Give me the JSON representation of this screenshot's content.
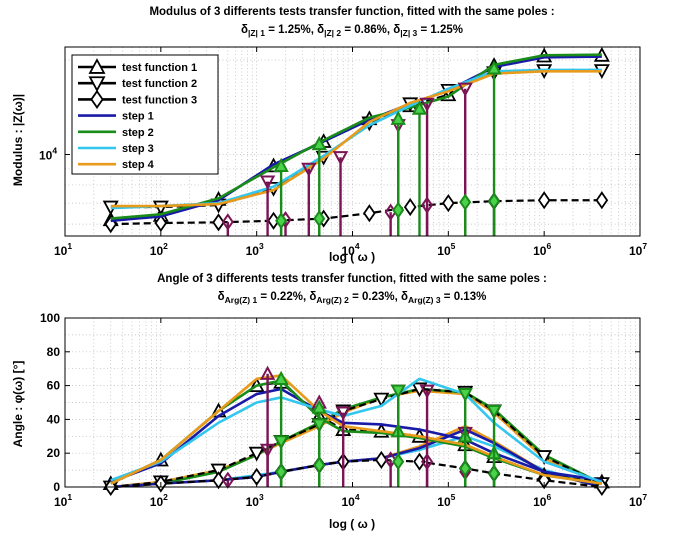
{
  "colors": {
    "test_function_1": "#000000",
    "test_function_2": "#000000",
    "test_function_3": "#000000",
    "step_1": "#1a1aa8",
    "step_2": "#1a8c1a",
    "step_3": "#33c6ee",
    "step_4": "#e89a1a",
    "stems_test_1": "#7a1455",
    "stems_test_2": "#1a8c1a",
    "grid": "#b8b8b8"
  },
  "chart_data": [
    {
      "type": "line",
      "title": "Modulus of 3 differents tests transfer function, fitted with the same poles :",
      "subtitle_parts": [
        "δ",
        "|Z| 1",
        " = 1.25%, ",
        "δ",
        "|Z| 2",
        " = 0.86%, ",
        "δ",
        "|Z| 3",
        " = 1.25%"
      ],
      "xlabel": "log ( ω )",
      "ylabel": "Modulus : |Z(ω)|",
      "x_scale": "log",
      "y_scale": "log",
      "xlim": [
        10,
        10000000
      ],
      "ylim": [
        5500,
        22000
      ],
      "x_ticks": [
        {
          "v": 10,
          "b": "10",
          "e": "1"
        },
        {
          "v": 100,
          "b": "10",
          "e": "2"
        },
        {
          "v": 1000,
          "b": "10",
          "e": "3"
        },
        {
          "v": 10000,
          "b": "10",
          "e": "4"
        },
        {
          "v": 100000,
          "b": "10",
          "e": "5"
        },
        {
          "v": 1000000,
          "b": "10",
          "e": "6"
        },
        {
          "v": 10000000,
          "b": "10",
          "e": "7"
        }
      ],
      "y_ticks": [
        {
          "v": 10000,
          "b": "10",
          "e": "4"
        }
      ],
      "grid": true,
      "legend": "top-left",
      "legend_entries": [
        {
          "label": "test function 1",
          "marker": "triangle-up",
          "color": "#000000"
        },
        {
          "label": "test function 2",
          "marker": "triangle-down",
          "color": "#000000"
        },
        {
          "label": "test function 3",
          "marker": "diamond",
          "color": "#000000"
        },
        {
          "label": "step 1",
          "color": "#1a1aa8"
        },
        {
          "label": "step 2",
          "color": "#1a8c1a"
        },
        {
          "label": "step 3",
          "color": "#33c6ee"
        },
        {
          "label": "step 4",
          "color": "#e89a1a"
        }
      ],
      "series": [
        {
          "name": "test function 1",
          "marker": "triangle-up",
          "style": "dashed",
          "x": [
            30,
            100,
            400,
            1500,
            5000,
            15000,
            40000,
            100000,
            300000,
            1000000,
            4000000
          ],
          "y": [
            6200,
            6400,
            7200,
            9200,
            11000,
            13000,
            14300,
            15500,
            19200,
            20600,
            20700
          ]
        },
        {
          "name": "test function 2",
          "marker": "triangle-down",
          "style": "dashed",
          "x": [
            30,
            100,
            400,
            1500,
            5000,
            15000,
            40000,
            100000,
            300000,
            1000000,
            4000000
          ],
          "y": [
            6800,
            6800,
            6900,
            7800,
            9800,
            12600,
            14500,
            16000,
            18200,
            18500,
            18500
          ]
        },
        {
          "name": "test function 3",
          "marker": "diamond",
          "style": "dashed",
          "x": [
            30,
            100,
            400,
            1500,
            5000,
            15000,
            40000,
            100000,
            300000,
            1000000,
            4000000
          ],
          "y": [
            6000,
            6050,
            6080,
            6150,
            6250,
            6500,
            6800,
            7000,
            7100,
            7150,
            7150
          ]
        },
        {
          "name": "step 1",
          "x": [
            30,
            100,
            400,
            1500,
            5000,
            15000,
            40000,
            100000,
            300000,
            1000000,
            4000000
          ],
          "y": [
            6150,
            6350,
            7150,
            9300,
            11000,
            12900,
            14500,
            16000,
            19000,
            20400,
            20500
          ]
        },
        {
          "name": "step 2",
          "x": [
            30,
            100,
            400,
            1500,
            5000,
            15000,
            40000,
            100000,
            300000,
            1000000,
            4000000
          ],
          "y": [
            6250,
            6450,
            7250,
            9100,
            11100,
            13100,
            14100,
            15300,
            19300,
            20700,
            20800
          ]
        },
        {
          "name": "step 3",
          "x": [
            30,
            100,
            400,
            1500,
            5000,
            15000,
            40000,
            100000,
            300000,
            1000000,
            4000000
          ],
          "y": [
            6750,
            6850,
            7000,
            7900,
            9900,
            12400,
            14300,
            16200,
            18400,
            18600,
            18600
          ]
        },
        {
          "name": "step 4",
          "x": [
            30,
            100,
            400,
            1500,
            5000,
            15000,
            40000,
            100000,
            300000,
            1000000,
            4000000
          ],
          "y": [
            6850,
            6850,
            6950,
            7700,
            9700,
            12700,
            14600,
            15900,
            18100,
            18400,
            18400
          ]
        }
      ],
      "stems": [
        {
          "color": "#7a1455",
          "marker": "triangle-down",
          "x": [
            1300,
            3500,
            7500,
            30000,
            60000,
            150000
          ],
          "y": [
            8200,
            9000,
            9800,
            12400,
            14500,
            16200
          ]
        },
        {
          "color": "#7a1455",
          "marker": "diamond",
          "x": [
            500,
            2000,
            25000,
            60000,
            300000
          ],
          "y": [
            6100,
            6200,
            6550,
            6900,
            7100
          ]
        },
        {
          "color": "#1a8c1a",
          "marker": "triangle-up",
          "x": [
            1800,
            4500,
            30000,
            50000,
            300000
          ],
          "y": [
            9200,
            10800,
            13000,
            14000,
            18800
          ]
        },
        {
          "color": "#1a8c1a",
          "marker": "diamond",
          "x": [
            1800,
            4500,
            30000,
            150000,
            300000
          ],
          "y": [
            6150,
            6250,
            6650,
            7050,
            7100
          ]
        }
      ]
    },
    {
      "type": "line",
      "title": "Angle of 3 differents tests transfer function, fitted with the same poles :",
      "subtitle_parts": [
        "δ",
        "Arg(Z) 1",
        " = 0.22%, ",
        "δ",
        "Arg(Z) 2",
        " = 0.23%, ",
        "δ",
        "Arg(Z) 3",
        " = 0.13%"
      ],
      "xlabel": "log ( ω )",
      "ylabel": "Angle : φ(ω)     [°]",
      "x_scale": "log",
      "y_scale": "linear",
      "xlim": [
        10,
        10000000
      ],
      "ylim": [
        0,
        100
      ],
      "x_ticks": [
        {
          "v": 10,
          "b": "10",
          "e": "1"
        },
        {
          "v": 100,
          "b": "10",
          "e": "2"
        },
        {
          "v": 1000,
          "b": "10",
          "e": "3"
        },
        {
          "v": 10000,
          "b": "10",
          "e": "4"
        },
        {
          "v": 100000,
          "b": "10",
          "e": "5"
        },
        {
          "v": 1000000,
          "b": "10",
          "e": "6"
        },
        {
          "v": 10000000,
          "b": "10",
          "e": "7"
        }
      ],
      "y_ticks": [
        {
          "v": 0,
          "label": "0"
        },
        {
          "v": 20,
          "label": "20"
        },
        {
          "v": 40,
          "label": "40"
        },
        {
          "v": 60,
          "label": "60"
        },
        {
          "v": 80,
          "label": "80"
        },
        {
          "v": 100,
          "label": "100"
        }
      ],
      "grid": true,
      "series": [
        {
          "name": "test function 1",
          "marker": "triangle-up",
          "style": "dashed",
          "x": [
            30,
            100,
            400,
            1000,
            1800,
            4500,
            8000,
            20000,
            50000,
            150000,
            300000,
            1000000,
            4000000
          ],
          "y": [
            2,
            16,
            45,
            60,
            62,
            42,
            34,
            33,
            30,
            25,
            18,
            7,
            3
          ]
        },
        {
          "name": "test function 2",
          "marker": "triangle-down",
          "style": "dashed",
          "x": [
            30,
            100,
            400,
            1000,
            1800,
            4500,
            8000,
            20000,
            50000,
            150000,
            300000,
            1000000,
            4000000
          ],
          "y": [
            0,
            3,
            10,
            20,
            27,
            37,
            45,
            52,
            58,
            56,
            45,
            18,
            2
          ]
        },
        {
          "name": "test function 3",
          "marker": "diamond",
          "style": "dashed",
          "x": [
            30,
            100,
            400,
            1000,
            1800,
            4500,
            8000,
            20000,
            50000,
            150000,
            300000,
            1000000,
            4000000
          ],
          "y": [
            0,
            2,
            4,
            6,
            9,
            13,
            15,
            16,
            15,
            11,
            8,
            4,
            0
          ]
        },
        {
          "name": "step 1",
          "x": [
            30,
            100,
            400,
            1000,
            1800,
            4500,
            8000,
            20000,
            50000,
            150000,
            300000,
            1000000,
            4000000
          ],
          "y": [
            3,
            14,
            42,
            55,
            58,
            45,
            38,
            37,
            34,
            28,
            20,
            9,
            4
          ]
        },
        {
          "name": "step 2",
          "x": [
            30,
            100,
            400,
            1000,
            1800,
            4500,
            8000,
            20000,
            50000,
            150000,
            300000,
            1000000,
            4000000
          ],
          "y": [
            2,
            16,
            45,
            60,
            63,
            41,
            33,
            32,
            29,
            24,
            17,
            7,
            2
          ]
        },
        {
          "name": "step 3",
          "x": [
            30,
            100,
            400,
            1000,
            1800,
            4500,
            8000,
            20000,
            50000,
            150000,
            300000,
            1000000,
            4000000
          ],
          "y": [
            4,
            15,
            38,
            50,
            53,
            46,
            42,
            48,
            64,
            55,
            38,
            15,
            3
          ]
        },
        {
          "name": "step 4",
          "x": [
            30,
            100,
            400,
            1000,
            1800,
            4500,
            8000,
            20000,
            50000,
            150000,
            300000,
            1000000,
            4000000
          ],
          "y": [
            2,
            16,
            45,
            64,
            66,
            45,
            36,
            33,
            30,
            25,
            18,
            7,
            2
          ]
        }
      ],
      "extra_curves": [
        {
          "color": "#e89a1a",
          "x": [
            30,
            100,
            400,
            1000,
            1800,
            4500,
            8000,
            20000,
            50000,
            150000,
            300000,
            1000000,
            4000000
          ],
          "y": [
            0,
            3,
            10,
            19,
            26,
            36,
            44,
            53,
            57,
            55,
            44,
            17,
            2
          ]
        },
        {
          "color": "#1a8c1a",
          "x": [
            30,
            100,
            400,
            1000,
            1800,
            4500,
            8000,
            20000,
            50000,
            150000,
            300000,
            1000000,
            4000000
          ],
          "y": [
            0,
            2,
            9,
            19,
            27,
            38,
            46,
            53,
            58,
            56,
            46,
            19,
            2
          ]
        },
        {
          "color": "#33c6ee",
          "x": [
            30,
            100,
            400,
            1000,
            1800,
            4500,
            8000,
            20000,
            50000,
            150000,
            300000,
            1000000,
            4000000
          ],
          "y": [
            0,
            2,
            4,
            7,
            9,
            13,
            15,
            17,
            22,
            30,
            24,
            10,
            1
          ]
        },
        {
          "color": "#e89a1a",
          "x": [
            30,
            100,
            400,
            1000,
            1800,
            4500,
            8000,
            20000,
            50000,
            150000,
            300000,
            1000000,
            4000000
          ],
          "y": [
            0,
            2,
            4,
            6,
            9,
            13,
            15,
            17,
            24,
            36,
            27,
            9,
            0
          ]
        },
        {
          "color": "#1a1aa8",
          "x": [
            30,
            100,
            400,
            1000,
            1800,
            4500,
            8000,
            20000,
            50000,
            150000,
            300000,
            1000000,
            4000000
          ],
          "y": [
            0,
            2,
            4,
            6,
            9,
            13,
            15,
            17,
            23,
            34,
            26,
            9,
            0
          ]
        }
      ],
      "stems": [
        {
          "color": "#7a1455",
          "marker": "triangle-up",
          "x": [
            1300,
            4500
          ],
          "y": [
            67,
            50
          ]
        },
        {
          "color": "#7a1455",
          "marker": "triangle-down",
          "x": [
            1300,
            8000,
            30000,
            60000,
            150000
          ],
          "y": [
            22,
            44,
            57,
            57,
            32
          ]
        },
        {
          "color": "#7a1455",
          "marker": "diamond",
          "x": [
            500,
            25000,
            60000,
            150000
          ],
          "y": [
            4,
            16,
            15,
            9
          ]
        },
        {
          "color": "#1a8c1a",
          "marker": "triangle-up",
          "x": [
            1800,
            4500,
            30000,
            150000,
            300000
          ],
          "y": [
            64,
            47,
            33,
            30,
            20
          ]
        },
        {
          "color": "#1a8c1a",
          "marker": "triangle-down",
          "x": [
            1800,
            4500,
            30000,
            150000,
            300000
          ],
          "y": [
            27,
            37,
            57,
            55,
            45
          ]
        },
        {
          "color": "#1a8c1a",
          "marker": "diamond",
          "x": [
            1800,
            4500,
            30000,
            150000,
            300000
          ],
          "y": [
            9,
            13,
            15,
            11,
            8
          ]
        }
      ]
    }
  ]
}
